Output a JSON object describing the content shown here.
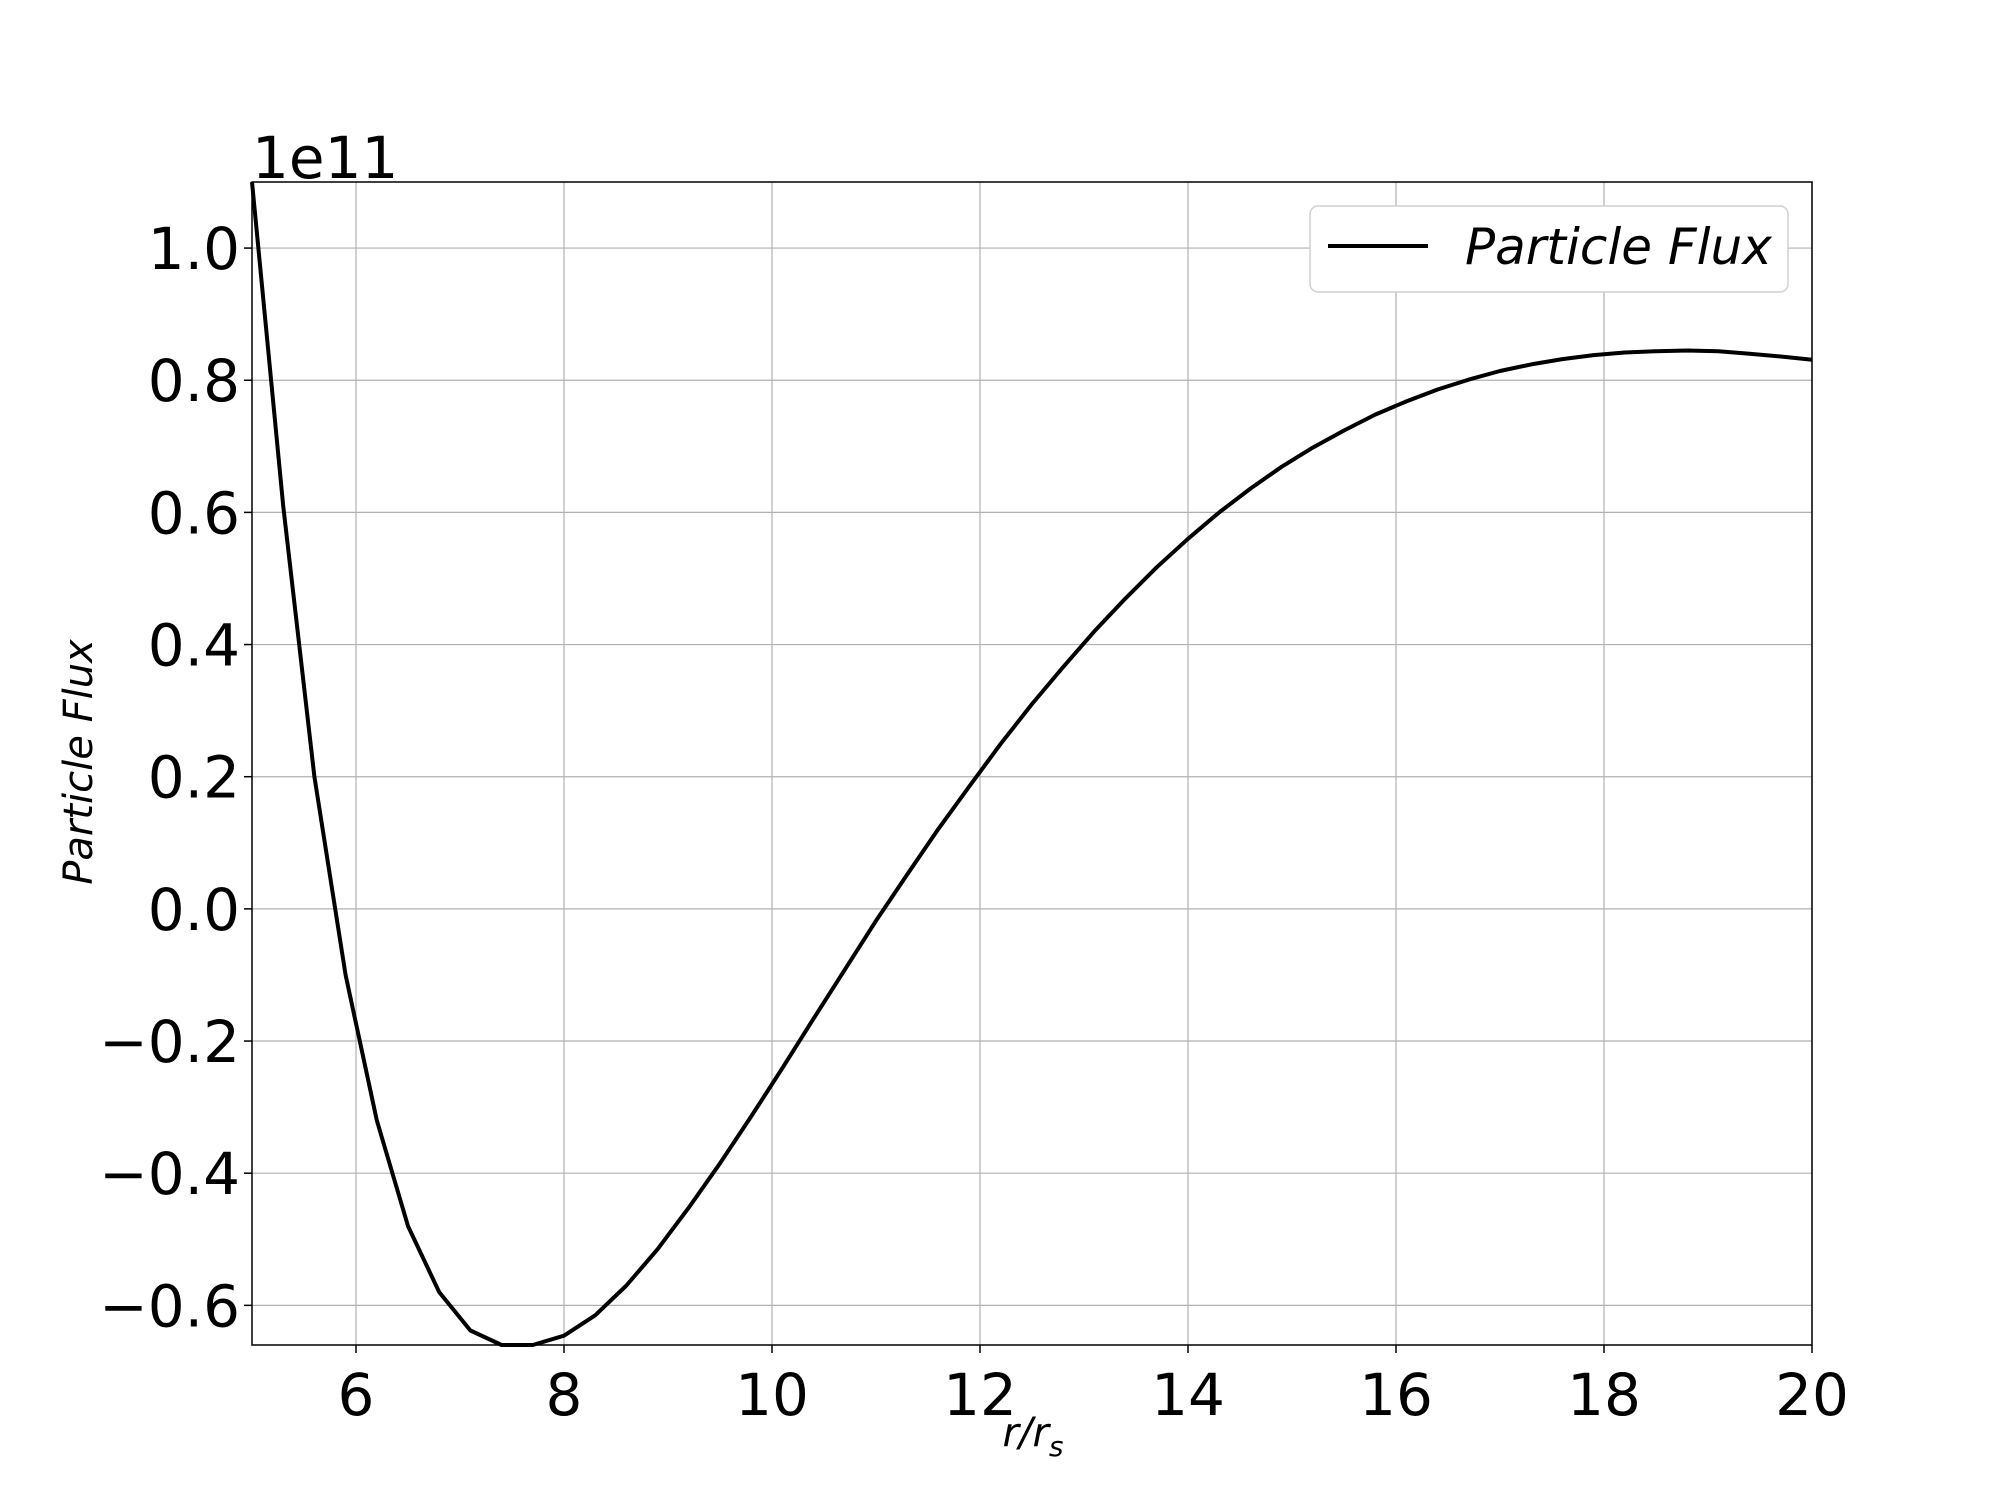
{
  "chart_data": {
    "type": "line",
    "xlabel": "r/r",
    "xlabel_sub": "s",
    "ylabel": "Particle Flux",
    "y_offset_text": "1e11",
    "xlim": [
      5,
      20
    ],
    "ylim": [
      -0.66,
      1.1
    ],
    "x_ticks": [
      6,
      8,
      10,
      12,
      14,
      16,
      18,
      20
    ],
    "y_ticks": [
      1.0,
      0.8,
      0.6,
      0.4,
      0.2,
      0.0,
      -0.2,
      -0.4,
      -0.6
    ],
    "y_tick_labels": [
      "1.0",
      "0.8",
      "0.6",
      "0.4",
      "0.2",
      "0.0",
      "−0.2",
      "−0.4",
      "−0.6"
    ],
    "grid": true,
    "legend_position": "top-right",
    "series": [
      {
        "name": "Particle Flux",
        "color": "#000000",
        "x": [
          5.0,
          5.3,
          5.6,
          5.9,
          6.2,
          6.5,
          6.8,
          7.1,
          7.4,
          7.7,
          8.0,
          8.3,
          8.6,
          8.9,
          9.2,
          9.5,
          9.8,
          10.1,
          10.4,
          10.7,
          11.0,
          11.3,
          11.6,
          11.9,
          12.2,
          12.5,
          12.8,
          13.1,
          13.4,
          13.7,
          14.0,
          14.3,
          14.6,
          14.9,
          15.2,
          15.5,
          15.8,
          16.1,
          16.4,
          16.7,
          17.0,
          17.3,
          17.6,
          17.9,
          18.2,
          18.5,
          18.8,
          19.1,
          19.4,
          19.7,
          20.0
        ],
        "y": [
          1.1,
          0.61,
          0.2,
          -0.1,
          -0.32,
          -0.48,
          -0.58,
          -0.638,
          -0.66,
          -0.66,
          -0.646,
          -0.615,
          -0.57,
          -0.515,
          -0.452,
          -0.385,
          -0.314,
          -0.241,
          -0.166,
          -0.092,
          -0.018,
          0.052,
          0.121,
          0.186,
          0.25,
          0.31,
          0.366,
          0.42,
          0.47,
          0.517,
          0.56,
          0.6,
          0.636,
          0.669,
          0.698,
          0.724,
          0.748,
          0.768,
          0.786,
          0.801,
          0.814,
          0.824,
          0.832,
          0.838,
          0.842,
          0.844,
          0.845,
          0.844,
          0.84,
          0.836,
          0.831
        ]
      }
    ]
  }
}
